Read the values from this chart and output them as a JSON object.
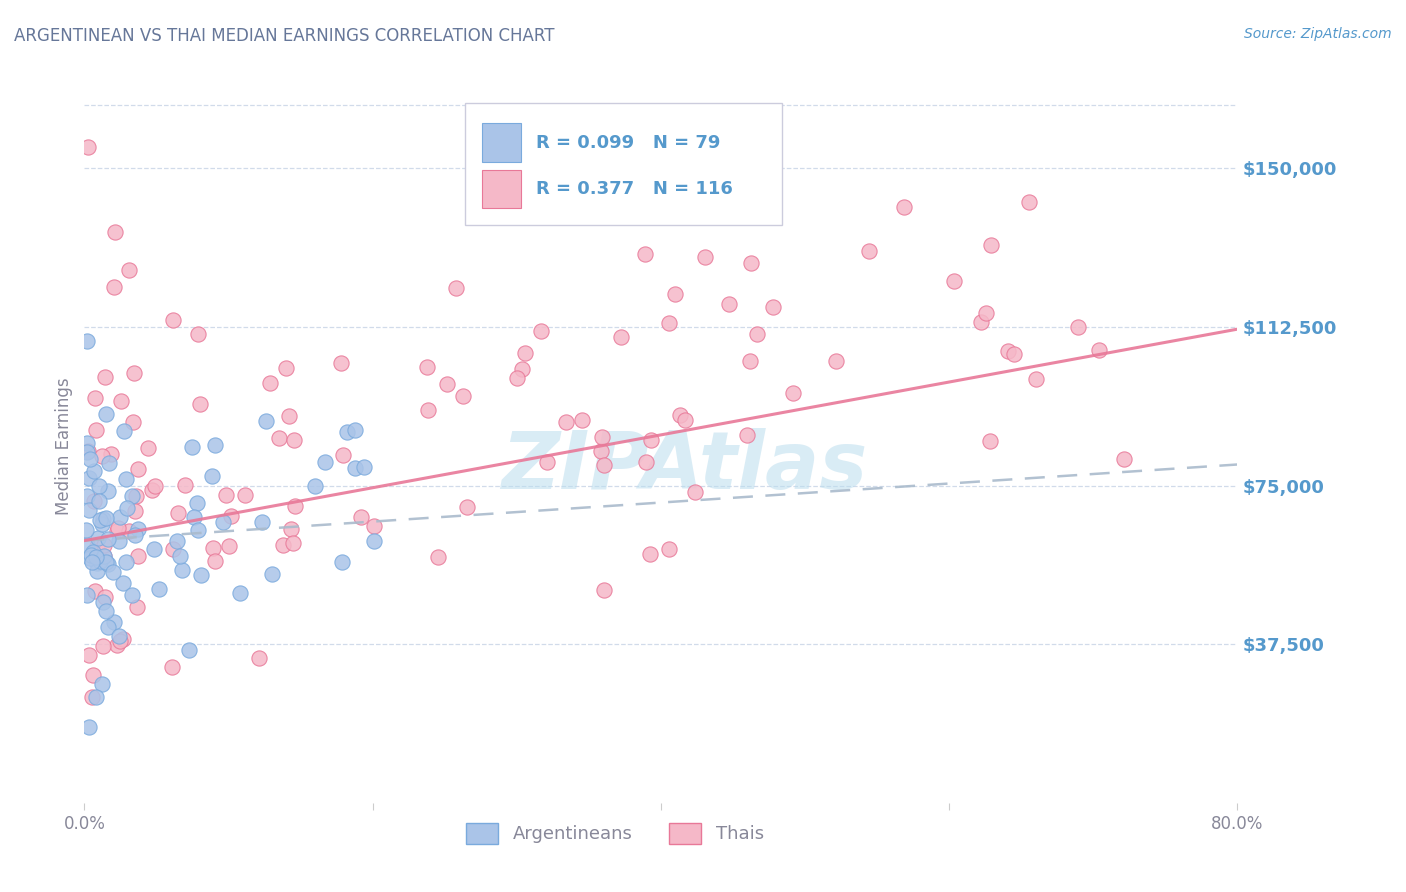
{
  "title": "ARGENTINEAN VS THAI MEDIAN EARNINGS CORRELATION CHART",
  "source": "Source: ZipAtlas.com",
  "ylabel": "Median Earnings",
  "watermark": "ZIPAtlas",
  "xlim": [
    0.0,
    0.8
  ],
  "ylim": [
    0,
    168750
  ],
  "ytick_vals": [
    37500,
    75000,
    112500,
    150000
  ],
  "ytick_labels": [
    "$37,500",
    "$75,000",
    "$112,500",
    "$150,000"
  ],
  "xtick_vals": [
    0.0,
    0.2,
    0.4,
    0.6,
    0.8
  ],
  "xtick_labels": [
    "0.0%",
    "",
    "",
    "",
    "80.0%"
  ],
  "arg_R": 0.099,
  "arg_N": 79,
  "thai_R": 0.377,
  "thai_N": 116,
  "arg_color": "#aac4e8",
  "arg_edge_color": "#7aaadd",
  "thai_color": "#f5b8c8",
  "thai_edge_color": "#e87898",
  "arg_line_color": "#5599cc",
  "thai_line_color": "#e87898",
  "grid_color": "#ccd8e8",
  "title_color": "#667799",
  "tick_label_color": "#5599cc",
  "ylabel_color": "#888899",
  "watermark_color": "#bbddee",
  "source_color": "#5599cc",
  "background_color": "#ffffff",
  "legend_border_color": "#ccccdd",
  "arg_trend_y0": 62000,
  "arg_trend_y1": 80000,
  "thai_trend_y0": 62000,
  "thai_trend_y1": 112000
}
